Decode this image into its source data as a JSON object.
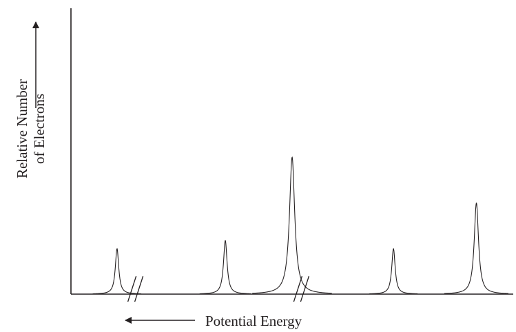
{
  "chart_data": {
    "type": "line",
    "title": "",
    "xlabel": "Potential Energy",
    "ylabel_line1": "Relative Number",
    "ylabel_line2": "of Electrons",
    "x_arrow_direction": "left",
    "y_arrow_direction": "up",
    "axis_breaks": [
      {
        "x": 1.4
      },
      {
        "x": 5.0
      }
    ],
    "peaks": [
      {
        "x": 1.0,
        "height": 0.17
      },
      {
        "x": 3.35,
        "height": 0.2
      },
      {
        "x": 4.8,
        "height": 0.51
      },
      {
        "x": 7.0,
        "height": 0.17
      },
      {
        "x": 8.8,
        "height": 0.34
      }
    ],
    "xlim": [
      0,
      9.6
    ],
    "ylim": [
      0,
      1
    ],
    "grid": false,
    "colors": {
      "line": "#231f20"
    }
  }
}
